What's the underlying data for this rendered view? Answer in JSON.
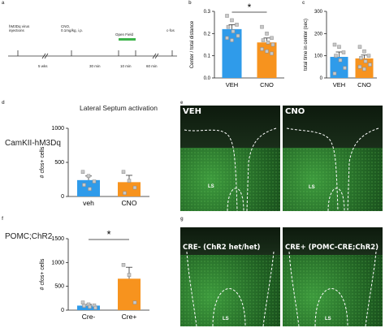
{
  "panels": {
    "a": "a",
    "b": "b",
    "c": "c",
    "d": "d",
    "e": "e",
    "f": "f",
    "g": "g"
  },
  "timeline": {
    "events": [
      {
        "label": "hM3Dq virus\ninjections"
      },
      {
        "label": "CNO,\n0.1mg/kg, i.p."
      },
      {
        "label": "Open Field"
      },
      {
        "label": "c-fos"
      }
    ],
    "intervals": [
      "5 wks",
      "30 min",
      "10 min",
      "60 min"
    ],
    "open_field_color": "#3cb34a"
  },
  "titles": {
    "camkii": "CamKII-hM3Dq",
    "lateral_septum": "Lateral Septum activation",
    "pomc": "POMC;ChR2"
  },
  "significance": {
    "b": "*",
    "f": "*"
  },
  "colors": {
    "blue": "#2f9bea",
    "orange": "#f7931e",
    "point_fill": "#c8c8c8",
    "point_stroke": "#888888"
  },
  "micrographs": {
    "e": {
      "left": "VEH",
      "right": "CNO",
      "region": "LS"
    },
    "g": {
      "left": "CRE- (ChR2 het/het)",
      "right": "CRE+ (POMC-CRE;ChR2)",
      "region": "LS"
    }
  },
  "chart_data": [
    {
      "id": "b",
      "type": "bar",
      "categories": [
        "VEH",
        "CNO"
      ],
      "values": [
        0.22,
        0.16
      ],
      "errors": [
        0.02,
        0.02
      ],
      "points": [
        [
          0.28,
          0.26,
          0.24,
          0.23,
          0.21,
          0.19,
          0.18,
          0.17
        ],
        [
          0.23,
          0.2,
          0.18,
          0.17,
          0.16,
          0.15,
          0.13,
          0.12,
          0.11
        ]
      ],
      "ylabel": "Center / total distance",
      "ylim": [
        0,
        0.3
      ],
      "yticks": [
        0.0,
        0.1,
        0.2,
        0.3
      ],
      "ytick_labels": [
        "0.0",
        "0.1",
        "0.2",
        "0.3"
      ]
    },
    {
      "id": "c",
      "type": "bar",
      "categories": [
        "VEH",
        "CNO"
      ],
      "values": [
        95,
        88
      ],
      "errors": [
        22,
        15
      ],
      "points": [
        [
          150,
          140,
          115,
          100,
          80,
          45,
          20
        ],
        [
          140,
          120,
          100,
          90,
          75,
          60,
          50,
          40
        ]
      ],
      "ylabel": "total time in center (sec)",
      "ylim": [
        0,
        300
      ],
      "yticks": [
        0,
        100,
        200,
        300
      ],
      "ytick_labels": [
        "0",
        "100",
        "200",
        "300"
      ]
    },
    {
      "id": "d",
      "type": "bar",
      "categories": [
        "veh",
        "CNO"
      ],
      "values": [
        240,
        210
      ],
      "errors": [
        60,
        100
      ],
      "points": [
        [
          360,
          300,
          220,
          170,
          110
        ],
        [
          360,
          230,
          130,
          50
        ]
      ],
      "ylabel": "# cfos+ cells",
      "ylim": [
        0,
        1000
      ],
      "yticks": [
        0,
        500,
        1000
      ],
      "ytick_labels": [
        "0",
        "500",
        "1000"
      ]
    },
    {
      "id": "f",
      "type": "bar",
      "categories": [
        "Cre-",
        "Cre+"
      ],
      "values": [
        95,
        660
      ],
      "errors": [
        25,
        240
      ],
      "points": [
        [
          160,
          120,
          100,
          90,
          70,
          50
        ],
        [
          950,
          740,
          160
        ]
      ],
      "ylabel": "# cfos+ cells",
      "ylim": [
        0,
        1500
      ],
      "yticks": [
        0,
        500,
        1000,
        1500
      ],
      "ytick_labels": [
        "0",
        "500",
        "1000",
        "1500"
      ]
    }
  ]
}
